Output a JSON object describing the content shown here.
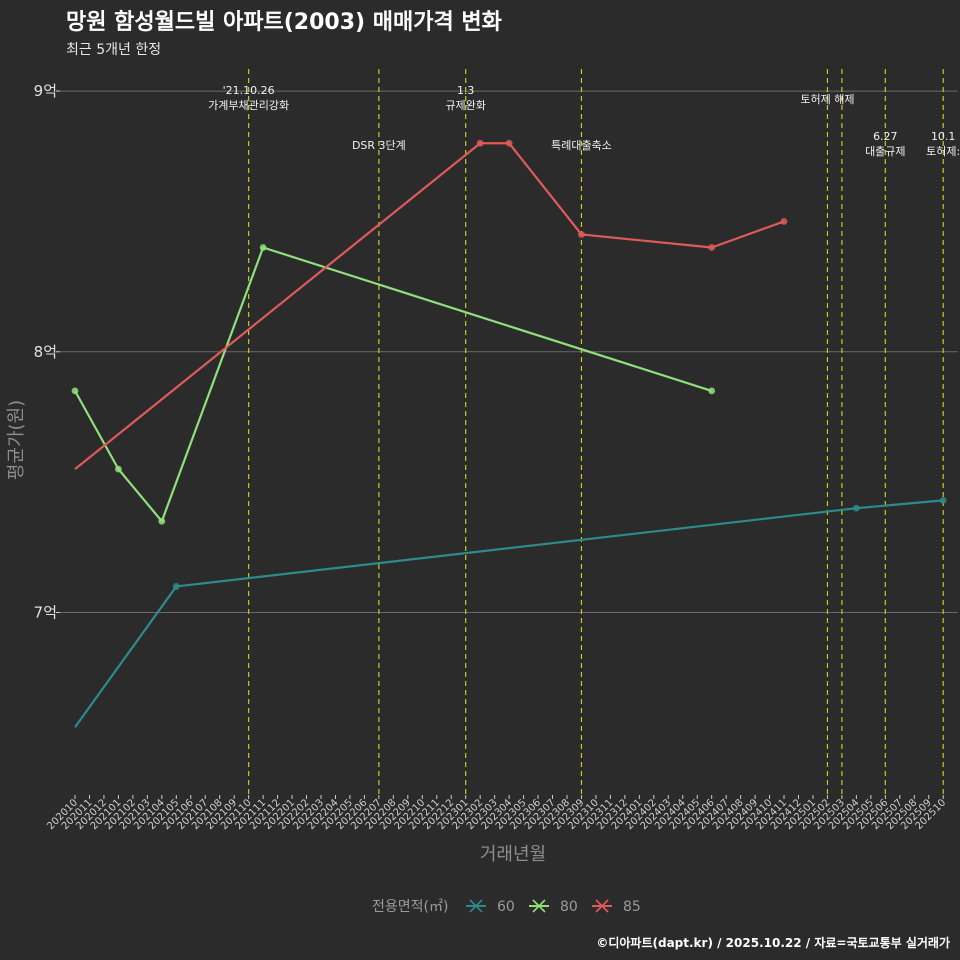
{
  "chart_data": {
    "type": "line",
    "title": "망원 함성월드빌 아파트(2003) 매매가격 변화",
    "subtitle": "최근 5개년 한정",
    "xlabel": "거래년월",
    "ylabel": "평균가(원)",
    "caption": "©디아파트(dapt.kr) / 2025.10.22 / 자료=국토교통부 실거래가",
    "ylim": [
      6.3,
      9.1
    ],
    "y_ticks": [
      {
        "value": 7,
        "label": "7억"
      },
      {
        "value": 8,
        "label": "8억"
      },
      {
        "value": 9,
        "label": "9억"
      }
    ],
    "x_categories": [
      "202010",
      "202011",
      "202012",
      "202101",
      "202102",
      "202103",
      "202104",
      "202105",
      "202106",
      "202107",
      "202108",
      "202109",
      "202110",
      "202111",
      "202112",
      "202201",
      "202202",
      "202203",
      "202204",
      "202205",
      "202206",
      "202207",
      "202208",
      "202209",
      "202210",
      "202211",
      "202212",
      "202301",
      "202302",
      "202303",
      "202304",
      "202305",
      "202306",
      "202307",
      "202308",
      "202309",
      "202310",
      "202311",
      "202312",
      "202401",
      "202402",
      "202403",
      "202404",
      "202405",
      "202406",
      "202407",
      "202408",
      "202409",
      "202410",
      "202411",
      "202412",
      "202501",
      "202502",
      "202503",
      "202504",
      "202505",
      "202506",
      "202507",
      "202508",
      "202509",
      "202510"
    ],
    "legend": {
      "title": "전용면적(㎡)",
      "position": "bottom"
    },
    "series": [
      {
        "name": "60",
        "color": "#2e8b8b",
        "points": [
          {
            "x": "202010",
            "y": 6.56,
            "marker": false
          },
          {
            "x": "202105",
            "y": 7.1,
            "marker": true
          },
          {
            "x": "202504",
            "y": 7.4,
            "marker": true
          },
          {
            "x": "202510",
            "y": 7.43,
            "marker": true
          }
        ]
      },
      {
        "name": "80",
        "color": "#8fe07a",
        "points": [
          {
            "x": "202010",
            "y": 7.85,
            "marker": true
          },
          {
            "x": "202101",
            "y": 7.55,
            "marker": true
          },
          {
            "x": "202104",
            "y": 7.35,
            "marker": true
          },
          {
            "x": "202111",
            "y": 8.4,
            "marker": true
          },
          {
            "x": "202406",
            "y": 7.85,
            "marker": true
          }
        ]
      },
      {
        "name": "85",
        "color": "#e05a5a",
        "points": [
          {
            "x": "202010",
            "y": 7.55,
            "marker": false
          },
          {
            "x": "202302",
            "y": 8.8,
            "marker": true
          },
          {
            "x": "202304",
            "y": 8.8,
            "marker": true
          },
          {
            "x": "202309",
            "y": 8.45,
            "marker": true
          },
          {
            "x": "202406",
            "y": 8.4,
            "marker": true
          },
          {
            "x": "202411",
            "y": 8.5,
            "marker": true
          }
        ]
      }
    ],
    "annotations": [
      {
        "x": "202110",
        "lines": [
          "'21.10.26",
          "가계부채관리강화"
        ],
        "row": "top"
      },
      {
        "x": "202207",
        "lines": [
          "DSR 3단계"
        ],
        "row": "mid"
      },
      {
        "x": "202301",
        "lines": [
          "1.3",
          "규제완화"
        ],
        "row": "top"
      },
      {
        "x": "202309",
        "lines": [
          "특례대출축소"
        ],
        "row": "mid"
      },
      {
        "x": "202502",
        "lines": [
          "토허제 해제"
        ],
        "row": "upper"
      },
      {
        "x": "202503",
        "lines": [],
        "row": "none"
      },
      {
        "x": "202506",
        "lines": [
          "6.27",
          "대출규제"
        ],
        "row": "lower"
      },
      {
        "x": "202510",
        "lines": [
          "10.1",
          "토허제:"
        ],
        "row": "lower"
      }
    ]
  }
}
